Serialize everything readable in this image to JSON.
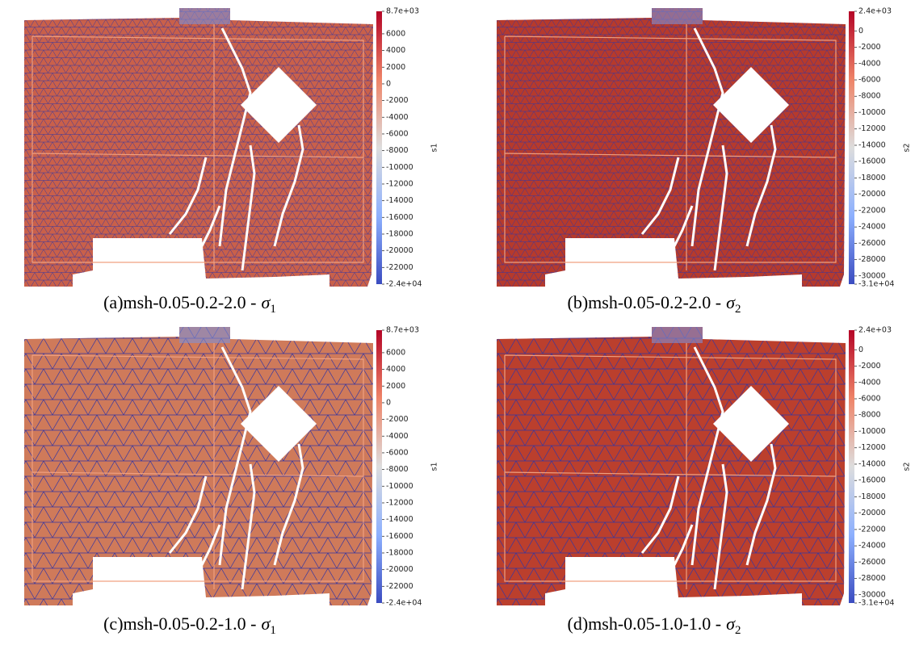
{
  "panels": [
    {
      "tag": "(a)",
      "name": "msh-0.05-0.2-2.0 -",
      "symbol": "σ",
      "subscript": "1",
      "colorbar": {
        "label": "s1",
        "range": [
          -24000,
          8700
        ],
        "ticks": [
          {
            "value": 8700,
            "label": "8.7e+03"
          },
          6000,
          4000,
          2000,
          0,
          -2000,
          -4000,
          -6000,
          -8000,
          -10000,
          -12000,
          -14000,
          -16000,
          -18000,
          -20000,
          -22000,
          {
            "value": -24000,
            "label": "-2.4e+04"
          }
        ]
      }
    },
    {
      "tag": "(b)",
      "name": "msh-0.05-0.2-2.0 -",
      "symbol": "σ",
      "subscript": "2",
      "colorbar": {
        "label": "s2",
        "range": [
          -31000,
          2400
        ],
        "ticks": [
          {
            "value": 2400,
            "label": "2.4e+03"
          },
          0,
          -2000,
          -4000,
          -6000,
          -8000,
          -10000,
          -12000,
          -14000,
          -16000,
          -18000,
          -20000,
          -22000,
          -24000,
          -26000,
          -28000,
          -30000,
          {
            "value": -31000,
            "label": "-3.1e+04"
          }
        ]
      }
    },
    {
      "tag": "(c)",
      "name": "msh-0.05-0.2-1.0 -",
      "symbol": "σ",
      "subscript": "1",
      "colorbar": {
        "label": "s1",
        "range": [
          -24000,
          8700
        ],
        "ticks": [
          {
            "value": 8700,
            "label": "8.7e+03"
          },
          6000,
          4000,
          2000,
          0,
          -2000,
          -4000,
          -6000,
          -8000,
          -10000,
          -12000,
          -14000,
          -16000,
          -18000,
          -20000,
          -22000,
          {
            "value": -24000,
            "label": "-2.4e+04"
          }
        ]
      }
    },
    {
      "tag": "(d)",
      "name": "msh-0.05-1.0-1.0 -",
      "symbol": "σ",
      "subscript": "2",
      "colorbar": {
        "label": "s2",
        "range": [
          -31000,
          2400
        ],
        "ticks": [
          {
            "value": 2400,
            "label": "2.4e+03"
          },
          0,
          -2000,
          -4000,
          -6000,
          -8000,
          -10000,
          -12000,
          -14000,
          -16000,
          -18000,
          -20000,
          -22000,
          -24000,
          -26000,
          -28000,
          -30000,
          {
            "value": -31000,
            "label": "-3.1e+04"
          }
        ]
      }
    }
  ]
}
